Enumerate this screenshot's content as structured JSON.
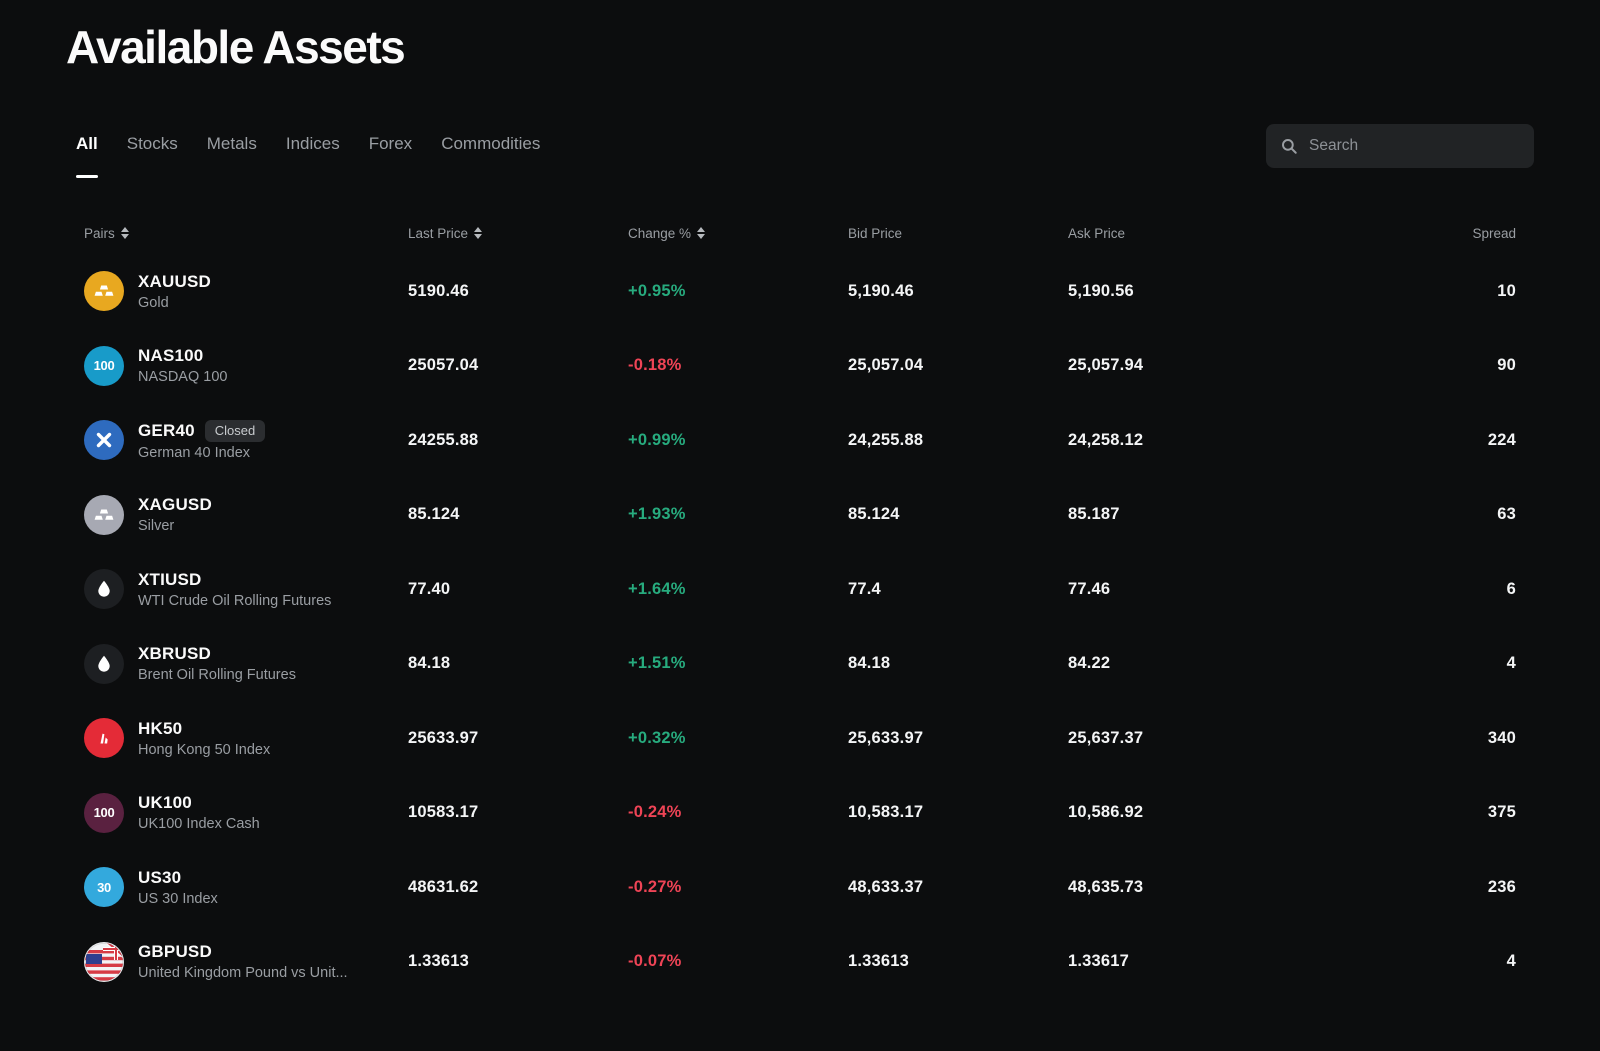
{
  "page": {
    "title": "Available Assets",
    "background": "#0c0d0e"
  },
  "tabs": [
    {
      "label": "All",
      "active": true
    },
    {
      "label": "Stocks",
      "active": false
    },
    {
      "label": "Metals",
      "active": false
    },
    {
      "label": "Indices",
      "active": false
    },
    {
      "label": "Forex",
      "active": false
    },
    {
      "label": "Commodities",
      "active": false
    }
  ],
  "search": {
    "placeholder": "Search",
    "icon": "search-icon"
  },
  "colors": {
    "positive": "#27ab7e",
    "negative": "#ef4456",
    "background": "#0c0d0e",
    "text_primary": "#f2f3f4",
    "text_secondary": "#9a9ea3"
  },
  "table": {
    "columns": [
      {
        "label": "Pairs",
        "sortable": true,
        "align": "left"
      },
      {
        "label": "Last Price",
        "sortable": true,
        "align": "left"
      },
      {
        "label": "Change %",
        "sortable": true,
        "align": "left"
      },
      {
        "label": "Bid Price",
        "sortable": false,
        "align": "left"
      },
      {
        "label": "Ask Price",
        "sortable": false,
        "align": "left"
      },
      {
        "label": "Spread",
        "sortable": false,
        "align": "right"
      }
    ],
    "rows": [
      {
        "symbol": "XAUUSD",
        "name": "Gold",
        "badge": "",
        "icon": {
          "name": "gold-bars-icon",
          "glyph": "bars",
          "bg": "#e8a820",
          "text": ""
        },
        "last": "5190.46",
        "change": "+0.95%",
        "direction": "up",
        "bid": "5,190.46",
        "ask": "5,190.56",
        "spread": "10"
      },
      {
        "symbol": "NAS100",
        "name": "NASDAQ 100",
        "badge": "",
        "icon": {
          "name": "nasdaq-100-icon",
          "glyph": "text",
          "bg": "#189bc9",
          "text": "100"
        },
        "last": "25057.04",
        "change": "-0.18%",
        "direction": "down",
        "bid": "25,057.04",
        "ask": "25,057.94",
        "spread": "90"
      },
      {
        "symbol": "GER40",
        "name": "German 40 Index",
        "badge": "Closed",
        "icon": {
          "name": "german-40-cross-icon",
          "glyph": "cross",
          "bg": "#2e6bbf",
          "text": ""
        },
        "last": "24255.88",
        "change": "+0.99%",
        "direction": "up",
        "bid": "24,255.88",
        "ask": "24,258.12",
        "spread": "224"
      },
      {
        "symbol": "XAGUSD",
        "name": "Silver",
        "badge": "",
        "icon": {
          "name": "silver-bars-icon",
          "glyph": "bars",
          "bg": "#a7a9b3",
          "text": ""
        },
        "last": "85.124",
        "change": "+1.93%",
        "direction": "up",
        "bid": "85.124",
        "ask": "85.187",
        "spread": "63"
      },
      {
        "symbol": "XTIUSD",
        "name": "WTI Crude Oil Rolling Futures",
        "badge": "",
        "icon": {
          "name": "oil-drop-icon",
          "glyph": "drop",
          "bg": "#1d1f22",
          "text": ""
        },
        "last": "77.40",
        "change": "+1.64%",
        "direction": "up",
        "bid": "77.4",
        "ask": "77.46",
        "spread": "6"
      },
      {
        "symbol": "XBRUSD",
        "name": "Brent Oil Rolling Futures",
        "badge": "",
        "icon": {
          "name": "oil-drop-icon",
          "glyph": "drop",
          "bg": "#1d1f22",
          "text": ""
        },
        "last": "84.18",
        "change": "+1.51%",
        "direction": "up",
        "bid": "84.18",
        "ask": "84.22",
        "spread": "4"
      },
      {
        "symbol": "HK50",
        "name": "Hong Kong 50 Index",
        "badge": "",
        "icon": {
          "name": "hong-kong-50-icon",
          "glyph": "hk",
          "bg": "#e42b37",
          "text": ""
        },
        "last": "25633.97",
        "change": "+0.32%",
        "direction": "up",
        "bid": "25,633.97",
        "ask": "25,637.37",
        "spread": "340"
      },
      {
        "symbol": "UK100",
        "name": "UK100 Index Cash",
        "badge": "",
        "icon": {
          "name": "uk-100-icon",
          "glyph": "text",
          "bg": "#5a2140",
          "text": "100"
        },
        "last": "10583.17",
        "change": "-0.24%",
        "direction": "down",
        "bid": "10,583.17",
        "ask": "10,586.92",
        "spread": "375"
      },
      {
        "symbol": "US30",
        "name": "US 30 Index",
        "badge": "",
        "icon": {
          "name": "us-30-icon",
          "glyph": "text",
          "bg": "#33a9dd",
          "text": "30"
        },
        "last": "48631.62",
        "change": "-0.27%",
        "direction": "down",
        "bid": "48,633.37",
        "ask": "48,635.73",
        "spread": "236"
      },
      {
        "symbol": "GBPUSD",
        "name": "United Kingdom Pound vs Unit...",
        "badge": "",
        "icon": {
          "name": "gbp-usd-flags-icon",
          "glyph": "flags",
          "bg": "#e9eaec",
          "text": ""
        },
        "last": "1.33613",
        "change": "-0.07%",
        "direction": "down",
        "bid": "1.33613",
        "ask": "1.33617",
        "spread": "4"
      }
    ]
  }
}
